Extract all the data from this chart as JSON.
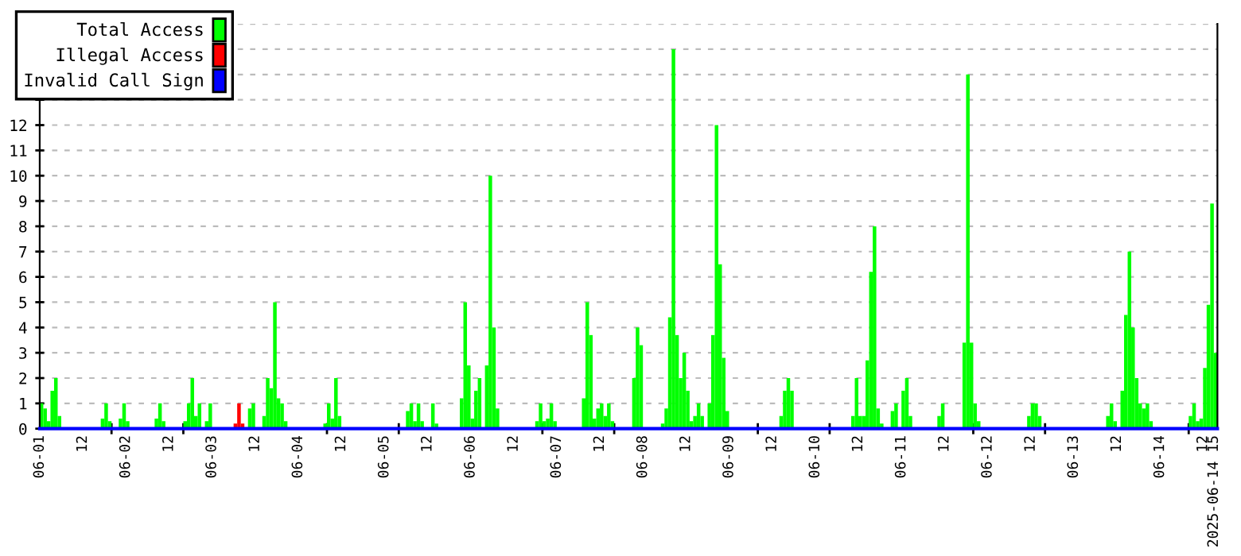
{
  "chart_data": {
    "type": "bar",
    "series": [
      {
        "name": "Total Access",
        "color": "#00ff00",
        "x": [
          "2025-06-01T00:00",
          "2025-06-01T01:00",
          "2025-06-01T02:00",
          "2025-06-01T03:00",
          "2025-06-01T04:00",
          "2025-06-01T05:00",
          "2025-06-01T17:00",
          "2025-06-01T18:00",
          "2025-06-01T19:00",
          "2025-06-01T22:00",
          "2025-06-01T23:00",
          "2025-06-02T00:00",
          "2025-06-02T08:00",
          "2025-06-02T09:00",
          "2025-06-02T10:00",
          "2025-06-02T16:00",
          "2025-06-02T17:00",
          "2025-06-02T18:00",
          "2025-06-02T19:00",
          "2025-06-02T20:00",
          "2025-06-02T22:00",
          "2025-06-02T23:00",
          "2025-06-03T10:00",
          "2025-06-03T11:00",
          "2025-06-03T14:00",
          "2025-06-03T15:00",
          "2025-06-03T16:00",
          "2025-06-03T17:00",
          "2025-06-03T18:00",
          "2025-06-03T19:00",
          "2025-06-03T20:00",
          "2025-06-04T07:00",
          "2025-06-04T08:00",
          "2025-06-04T09:00",
          "2025-06-04T10:00",
          "2025-06-04T11:00",
          "2025-06-05T06:00",
          "2025-06-05T07:00",
          "2025-06-05T08:00",
          "2025-06-05T09:00",
          "2025-06-05T10:00",
          "2025-06-05T13:00",
          "2025-06-05T14:00",
          "2025-06-05T21:00",
          "2025-06-05T22:00",
          "2025-06-05T23:00",
          "2025-06-06T00:00",
          "2025-06-06T01:00",
          "2025-06-06T02:00",
          "2025-06-06T04:00",
          "2025-06-06T05:00",
          "2025-06-06T06:00",
          "2025-06-06T07:00",
          "2025-06-06T18:00",
          "2025-06-06T19:00",
          "2025-06-06T20:00",
          "2025-06-06T21:00",
          "2025-06-06T22:00",
          "2025-06-06T23:00",
          "2025-06-07T07:00",
          "2025-06-07T08:00",
          "2025-06-07T09:00",
          "2025-06-07T10:00",
          "2025-06-07T11:00",
          "2025-06-07T12:00",
          "2025-06-07T13:00",
          "2025-06-07T14:00",
          "2025-06-07T15:00",
          "2025-06-07T21:00",
          "2025-06-07T22:00",
          "2025-06-07T23:00",
          "2025-06-08T05:00",
          "2025-06-08T06:00",
          "2025-06-08T07:00",
          "2025-06-08T08:00",
          "2025-06-08T09:00",
          "2025-06-08T10:00",
          "2025-06-08T11:00",
          "2025-06-08T12:00",
          "2025-06-08T13:00",
          "2025-06-08T14:00",
          "2025-06-08T15:00",
          "2025-06-08T16:00",
          "2025-06-08T18:00",
          "2025-06-08T19:00",
          "2025-06-08T20:00",
          "2025-06-08T21:00",
          "2025-06-08T22:00",
          "2025-06-08T23:00",
          "2025-06-09T14:00",
          "2025-06-09T15:00",
          "2025-06-09T16:00",
          "2025-06-09T17:00",
          "2025-06-10T10:00",
          "2025-06-10T11:00",
          "2025-06-10T12:00",
          "2025-06-10T13:00",
          "2025-06-10T14:00",
          "2025-06-10T15:00",
          "2025-06-10T16:00",
          "2025-06-10T17:00",
          "2025-06-10T18:00",
          "2025-06-10T21:00",
          "2025-06-10T22:00",
          "2025-06-11T00:00",
          "2025-06-11T01:00",
          "2025-06-11T02:00",
          "2025-06-11T10:00",
          "2025-06-11T11:00",
          "2025-06-11T17:00",
          "2025-06-11T18:00",
          "2025-06-11T19:00",
          "2025-06-11T20:00",
          "2025-06-11T21:00",
          "2025-06-12T11:00",
          "2025-06-12T12:00",
          "2025-06-12T13:00",
          "2025-06-12T14:00",
          "2025-06-13T09:00",
          "2025-06-13T10:00",
          "2025-06-13T11:00",
          "2025-06-13T13:00",
          "2025-06-13T14:00",
          "2025-06-13T15:00",
          "2025-06-13T16:00",
          "2025-06-13T17:00",
          "2025-06-13T18:00",
          "2025-06-13T19:00",
          "2025-06-13T20:00",
          "2025-06-13T21:00",
          "2025-06-14T08:00",
          "2025-06-14T09:00",
          "2025-06-14T10:00",
          "2025-06-14T11:00",
          "2025-06-14T12:00",
          "2025-06-14T13:00",
          "2025-06-14T14:00",
          "2025-06-14T15:00"
        ],
        "values": [
          1,
          0.8,
          0.3,
          1.5,
          2,
          0.5,
          0.4,
          1,
          0.3,
          0.4,
          1,
          0.3,
          0.4,
          1,
          0.3,
          0.3,
          1,
          2,
          0.5,
          1,
          0.3,
          1,
          0.8,
          1,
          0.5,
          2,
          1.6,
          5,
          1.2,
          1,
          0.3,
          0.2,
          1,
          0.4,
          2,
          0.5,
          0.7,
          1,
          0.3,
          1,
          0.3,
          1,
          0.2,
          1.2,
          5,
          2.5,
          0.4,
          1.5,
          2,
          2.5,
          10,
          4,
          0.8,
          0.3,
          1,
          0.3,
          0.4,
          1,
          0.3,
          1.2,
          5,
          3.7,
          0.4,
          0.8,
          1,
          0.5,
          1,
          0.3,
          2,
          4,
          3.3,
          0.2,
          0.8,
          4.4,
          15,
          3.7,
          2,
          3,
          1.5,
          0.3,
          0.5,
          1,
          0.5,
          1,
          3.7,
          12,
          6.5,
          2.8,
          0.7,
          0.5,
          1.5,
          2,
          1.5,
          0.5,
          2,
          0.5,
          0.5,
          2.7,
          6.2,
          8,
          0.8,
          0.2,
          0.7,
          1,
          1.5,
          2,
          0.5,
          0.5,
          1,
          3.4,
          14,
          3.4,
          1,
          0.3,
          0.5,
          1,
          1,
          0.5,
          0.5,
          1,
          0.3,
          1.5,
          4.5,
          7,
          4,
          2,
          1,
          0.8,
          1,
          0.3,
          0.5,
          1,
          0.3,
          0.4,
          2.4,
          4.9,
          8.9,
          3
        ]
      },
      {
        "name": "Illegal Access",
        "color": "#ff0000",
        "x": [
          "2025-06-03T06:00",
          "2025-06-03T07:00",
          "2025-06-03T08:00"
        ],
        "values": [
          0.2,
          1,
          0.2
        ]
      },
      {
        "name": "Invalid Call Sign",
        "color": "#0000ff",
        "type": "line",
        "x": [
          "2025-06-01T00:00",
          "2025-06-14T16:00"
        ],
        "values": [
          0,
          0
        ]
      }
    ],
    "xlim": [
      "2025-06-01T00:00",
      "2025-06-14T16:00"
    ],
    "xticks": [
      {
        "value": "2025-06-01",
        "label": "06-01"
      },
      {
        "value": "2025-06-01T12:00",
        "label": "12"
      },
      {
        "value": "2025-06-02",
        "label": "06-02"
      },
      {
        "value": "2025-06-02T12:00",
        "label": "12"
      },
      {
        "value": "2025-06-03",
        "label": "06-03"
      },
      {
        "value": "2025-06-03T12:00",
        "label": "12"
      },
      {
        "value": "2025-06-04",
        "label": "06-04"
      },
      {
        "value": "2025-06-04T12:00",
        "label": "12"
      },
      {
        "value": "2025-06-05",
        "label": "06-05"
      },
      {
        "value": "2025-06-05T12:00",
        "label": "12"
      },
      {
        "value": "2025-06-06",
        "label": "06-06"
      },
      {
        "value": "2025-06-06T12:00",
        "label": "12"
      },
      {
        "value": "2025-06-07",
        "label": "06-07"
      },
      {
        "value": "2025-06-07T12:00",
        "label": "12"
      },
      {
        "value": "2025-06-08",
        "label": "06-08"
      },
      {
        "value": "2025-06-08T12:00",
        "label": "12"
      },
      {
        "value": "2025-06-09",
        "label": "06-09"
      },
      {
        "value": "2025-06-09T12:00",
        "label": "12"
      },
      {
        "value": "2025-06-10",
        "label": "06-10"
      },
      {
        "value": "2025-06-10T12:00",
        "label": "12"
      },
      {
        "value": "2025-06-11",
        "label": "06-11"
      },
      {
        "value": "2025-06-11T12:00",
        "label": "12"
      },
      {
        "value": "2025-06-12",
        "label": "06-12"
      },
      {
        "value": "2025-06-12T12:00",
        "label": "12"
      },
      {
        "value": "2025-06-13",
        "label": "06-13"
      },
      {
        "value": "2025-06-13T12:00",
        "label": "12"
      },
      {
        "value": "2025-06-14",
        "label": "06-14"
      },
      {
        "value": "2025-06-14T12:00",
        "label": "12"
      },
      {
        "value": "2025-06-14T15:00",
        "label": "2025-06-14 15"
      },
      {
        "value": "2025-06-01T20:00",
        "label": null
      },
      {
        "value": "2025-06-02T16:00",
        "label": null
      },
      {
        "value": "2025-06-04T08:00",
        "label": null
      },
      {
        "value": "2025-06-05T04:00",
        "label": null
      },
      {
        "value": "2025-06-06T20:00",
        "label": null
      },
      {
        "value": "2025-06-07T16:00",
        "label": null
      },
      {
        "value": "2025-06-09T08:00",
        "label": null
      },
      {
        "value": "2025-06-10T04:00",
        "label": null
      },
      {
        "value": "2025-06-11T20:00",
        "label": null
      },
      {
        "value": "2025-06-12T16:00",
        "label": null
      },
      {
        "value": "2025-06-14T08:00",
        "label": null
      }
    ],
    "ylim": [
      0,
      16
    ],
    "yticks": [
      0,
      1,
      2,
      3,
      4,
      5,
      6,
      7,
      8,
      9,
      10,
      11,
      12,
      {
        "value": 13,
        "label": null
      },
      {
        "value": 14,
        "label": null
      },
      {
        "value": 15,
        "label": null
      },
      {
        "value": 16,
        "label": null
      }
    ],
    "grid": "y",
    "legend": "top left"
  }
}
